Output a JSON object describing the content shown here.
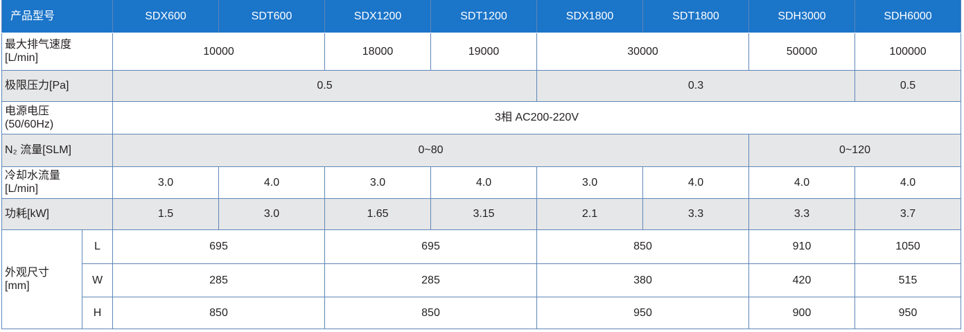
{
  "table": {
    "header": [
      "产品型号",
      "SDX600",
      "SDT600",
      "SDX1200",
      "SDT1200",
      "SDX1800",
      "SDT1800",
      "SDH3000",
      "SDH6000"
    ],
    "rows": [
      {
        "label": "最大排气速度\n[L/min]",
        "cells": [
          "10000",
          "18000",
          "19000",
          "30000",
          "50000",
          "100000"
        ]
      },
      {
        "label": "极限压力[Pa]",
        "cells": [
          "0.5",
          "0.3",
          "0.5"
        ]
      },
      {
        "label": "电源电压\n(50/60Hz)",
        "cells": [
          "3相  AC200-220V"
        ]
      },
      {
        "label": "N₂ 流量[SLM]",
        "cells": [
          "0~80",
          "0~120"
        ]
      },
      {
        "label": "冷却水流量\n[L/min]",
        "cells": [
          "3.0",
          "4.0",
          "3.0",
          "4.0",
          "3.0",
          "4.0",
          "4.0",
          "4.0"
        ]
      },
      {
        "label": "功耗[kW]",
        "cells": [
          "1.5",
          "3.0",
          "1.65",
          "3.15",
          "2.1",
          "3.3",
          "3.3",
          "3.7"
        ]
      }
    ],
    "dimensions": {
      "label": "外观尺寸\n[mm]",
      "rows": [
        {
          "label": "L",
          "cells": [
            "695",
            "695",
            "850",
            "910",
            "1050"
          ]
        },
        {
          "label": "W",
          "cells": [
            "285",
            "285",
            "380",
            "420",
            "515"
          ]
        },
        {
          "label": "H",
          "cells": [
            "850",
            "850",
            "950",
            "900",
            "950"
          ]
        }
      ]
    }
  }
}
